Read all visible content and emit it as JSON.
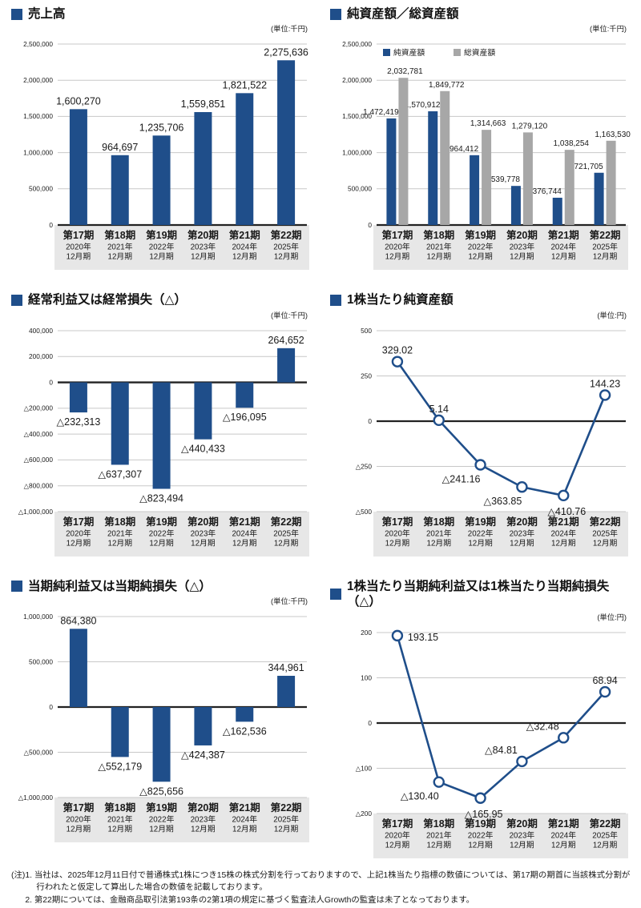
{
  "colors": {
    "navy": "#1f4e8a",
    "gray": "#a7a7a7",
    "grid": "#c8c8c8",
    "axis": "#222222",
    "band": "#e7e7e7",
    "text": "#1a1a1a"
  },
  "periods": [
    {
      "term": "第17期",
      "year": "2020年",
      "month": "12月期"
    },
    {
      "term": "第18期",
      "year": "2021年",
      "month": "12月期"
    },
    {
      "term": "第19期",
      "year": "2022年",
      "month": "12月期"
    },
    {
      "term": "第20期",
      "year": "2023年",
      "month": "12月期"
    },
    {
      "term": "第21期",
      "year": "2024年",
      "month": "12月期"
    },
    {
      "term": "第22期",
      "year": "2025年",
      "month": "12月期"
    }
  ],
  "chart_data": [
    {
      "type": "bar",
      "title": "売上高",
      "unit": "(単位:千円)",
      "ylim": [
        0,
        2500000
      ],
      "ytick_step": 500000,
      "values": [
        1600270,
        964697,
        1235706,
        1559851,
        1821522,
        2275636
      ],
      "labels": [
        "1,600,270",
        "964,697",
        "1,235,706",
        "1,559,851",
        "1,821,522",
        "2,275,636"
      ]
    },
    {
      "type": "grouped-bar",
      "title": "純資産額／総資産額",
      "unit": "(単位:千円)",
      "ylim": [
        0,
        2500000
      ],
      "ytick_step": 500000,
      "legend": [
        "純資産額",
        "総資産額"
      ],
      "series": [
        {
          "name": "純資産額",
          "values": [
            1472419,
            1570912,
            964412,
            539778,
            376744,
            721705
          ],
          "labels": [
            "1,472,419",
            "1,570,912",
            "964,412",
            "539,778",
            "376,744",
            "721,705"
          ]
        },
        {
          "name": "総資産額",
          "values": [
            2032781,
            1849772,
            1314663,
            1279120,
            1038254,
            1163530
          ],
          "labels": [
            "2,032,781",
            "1,849,772",
            "1,314,663",
            "1,279,120",
            "1,038,254",
            "1,163,530"
          ]
        }
      ]
    },
    {
      "type": "bar",
      "title": "経常利益又は経常損失（△）",
      "unit": "(単位:千円)",
      "ylim": [
        -1000000,
        400000
      ],
      "ytick_step": 200000,
      "values": [
        -232313,
        -637307,
        -823494,
        -440433,
        -196095,
        264652
      ],
      "labels": [
        "△232,313",
        "△637,307",
        "△823,494",
        "△440,433",
        "△196,095",
        "264,652"
      ]
    },
    {
      "type": "line",
      "title": "1株当たり純資産額",
      "unit": "(単位:円)",
      "ylim": [
        -500,
        500
      ],
      "ytick_step": 250,
      "values": [
        329.02,
        5.14,
        -241.16,
        -363.85,
        -410.76,
        144.23
      ],
      "labels": [
        "329.02",
        "5.14",
        "△241.16",
        "△363.85",
        "△410.76",
        "144.23"
      ],
      "label_pos": [
        "above",
        "above",
        "below-left",
        "below-left",
        "below",
        "above"
      ]
    },
    {
      "type": "bar",
      "title": "当期純利益又は当期純損失（△）",
      "unit": "(単位:千円)",
      "ylim": [
        -1000000,
        1000000
      ],
      "ytick_step": 500000,
      "values": [
        864380,
        -552179,
        -825656,
        -424387,
        -162536,
        344961
      ],
      "labels": [
        "864,380",
        "△552,179",
        "△825,656",
        "△424,387",
        "△162,536",
        "344,961"
      ]
    },
    {
      "type": "line",
      "title": "1株当たり当期純利益又は1株当たり当期純損失（△）",
      "unit": "(単位:円)",
      "ylim": [
        -200,
        200
      ],
      "ytick_step": 100,
      "values": [
        193.15,
        -130.4,
        -165.95,
        -84.81,
        -32.48,
        68.94
      ],
      "labels": [
        "193.15",
        "△130.40",
        "△165.95",
        "△84.81",
        "△32.48",
        "68.94"
      ],
      "label_pos": [
        "right",
        "below-left",
        "below",
        "above-left",
        "above-left",
        "above"
      ]
    }
  ],
  "footnotes": {
    "prefix": "(注)",
    "items": [
      "1. 当社は、2025年12月11日付で普通株式1株につき15株の株式分割を行っておりますので、上記1株当たり指標の数値については、第17期の期首に当該株式分割が行われたと仮定して算出した場合の数値を記載しております。",
      "2. 第22期については、金融商品取引法第193条の2第1項の規定に基づく監査法人Growthの監査は未了となっております。"
    ]
  }
}
